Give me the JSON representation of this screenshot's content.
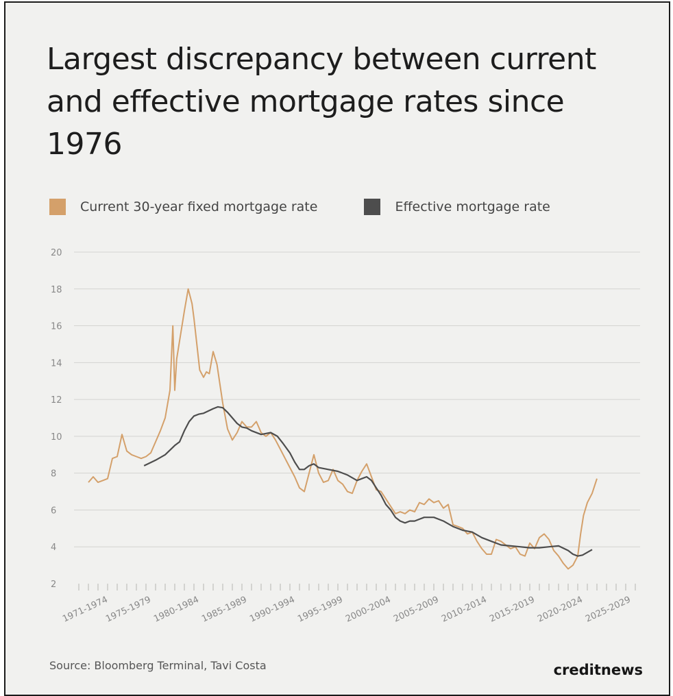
{
  "header": {
    "title": "Largest discrepancy between current and effective mortgage rates since 1976"
  },
  "footer": {
    "source": "Source: Bloomberg Terminal, Tavi Costa",
    "brand": "creditnews"
  },
  "chart_data": {
    "type": "line",
    "title": "Largest discrepancy between current and effective mortgage rates since 1976",
    "xlabel": "",
    "ylabel": "",
    "xlim": [
      1969.5,
      2028.5
    ],
    "ylim": [
      2,
      20
    ],
    "grid": true,
    "legend_position": "top-left",
    "yticks": [
      2,
      4,
      6,
      8,
      10,
      12,
      14,
      16,
      18,
      20
    ],
    "xtick_labels": [
      "1971-1974",
      "1975-1979",
      "1980-1984",
      "1985-1989",
      "1990-1994",
      "1995-1999",
      "2000-2004",
      "2005-2009",
      "2010-2014",
      "2015-2019",
      "2020-2024",
      "2025-2029"
    ],
    "series": [
      {
        "name": "Current 30-year fixed mortgage rate",
        "color": "#d4a06a",
        "x": [
          1971.0,
          1971.5,
          1972.0,
          1972.5,
          1973.0,
          1973.5,
          1974.0,
          1974.5,
          1975.0,
          1975.5,
          1976.0,
          1976.5,
          1977.0,
          1977.5,
          1978.0,
          1978.5,
          1979.0,
          1979.5,
          1979.8,
          1980.0,
          1980.2,
          1980.6,
          1981.0,
          1981.4,
          1981.8,
          1982.0,
          1982.3,
          1982.6,
          1983.0,
          1983.3,
          1983.6,
          1984.0,
          1984.4,
          1984.8,
          1985.0,
          1985.5,
          1986.0,
          1986.5,
          1987.0,
          1987.5,
          1988.0,
          1988.5,
          1989.0,
          1989.5,
          1990.0,
          1990.5,
          1991.0,
          1991.5,
          1992.0,
          1992.5,
          1993.0,
          1993.5,
          1994.0,
          1994.5,
          1995.0,
          1995.5,
          1996.0,
          1996.5,
          1997.0,
          1997.5,
          1998.0,
          1998.5,
          1999.0,
          1999.5,
          2000.0,
          2000.5,
          2001.0,
          2001.5,
          2002.0,
          2002.5,
          2003.0,
          2003.5,
          2004.0,
          2004.5,
          2005.0,
          2005.5,
          2006.0,
          2006.5,
          2007.0,
          2007.5,
          2008.0,
          2008.5,
          2009.0,
          2009.5,
          2010.0,
          2010.5,
          2011.0,
          2011.5,
          2012.0,
          2012.5,
          2013.0,
          2013.5,
          2014.0,
          2014.5,
          2015.0,
          2015.5,
          2016.0,
          2016.5,
          2017.0,
          2017.5,
          2018.0,
          2018.5,
          2019.0,
          2019.5,
          2020.0,
          2020.5,
          2021.0,
          2021.5,
          2022.0,
          2022.3,
          2022.6,
          2023.0,
          2023.5,
          2024.0
        ],
        "values": [
          7.5,
          7.8,
          7.5,
          7.6,
          7.7,
          8.8,
          8.9,
          10.1,
          9.2,
          9.0,
          8.9,
          8.8,
          8.9,
          9.1,
          9.7,
          10.3,
          11.0,
          12.5,
          16.0,
          12.5,
          14.2,
          15.5,
          16.8,
          18.0,
          17.2,
          16.4,
          15.0,
          13.6,
          13.2,
          13.5,
          13.4,
          14.6,
          13.9,
          12.5,
          11.8,
          10.4,
          9.8,
          10.2,
          10.8,
          10.5,
          10.5,
          10.8,
          10.2,
          10.0,
          10.2,
          9.8,
          9.3,
          8.8,
          8.3,
          7.8,
          7.2,
          7.0,
          8.0,
          9.0,
          8.0,
          7.5,
          7.6,
          8.2,
          7.6,
          7.4,
          7.0,
          6.9,
          7.6,
          8.1,
          8.5,
          7.8,
          7.1,
          7.0,
          6.6,
          6.2,
          5.8,
          5.9,
          5.8,
          6.0,
          5.9,
          6.4,
          6.3,
          6.6,
          6.4,
          6.5,
          6.1,
          6.3,
          5.2,
          5.1,
          5.0,
          4.7,
          4.8,
          4.3,
          3.9,
          3.6,
          3.6,
          4.4,
          4.3,
          4.1,
          3.9,
          4.0,
          3.6,
          3.5,
          4.2,
          3.9,
          4.5,
          4.7,
          4.4,
          3.8,
          3.5,
          3.1,
          2.8,
          3.0,
          3.5,
          4.7,
          5.7,
          6.4,
          6.9,
          7.7
        ]
      },
      {
        "name": "Effective mortgage rate",
        "color": "#4d4d4d",
        "x": [
          1976.8,
          1978.0,
          1979.0,
          1980.0,
          1980.5,
          1981.0,
          1981.5,
          1982.0,
          1982.5,
          1983.0,
          1984.0,
          1984.5,
          1985.0,
          1985.5,
          1986.0,
          1986.5,
          1987.0,
          1987.5,
          1988.0,
          1989.0,
          1990.0,
          1990.7,
          1991.3,
          1992.0,
          1992.5,
          1993.0,
          1993.5,
          1994.0,
          1994.5,
          1995.0,
          1996.0,
          1997.0,
          1998.0,
          1999.0,
          1999.5,
          2000.0,
          2000.5,
          2001.0,
          2001.5,
          2002.0,
          2002.5,
          2003.0,
          2003.5,
          2004.0,
          2004.5,
          2005.0,
          2005.5,
          2006.0,
          2007.0,
          2008.0,
          2009.0,
          2010.0,
          2011.0,
          2012.0,
          2013.0,
          2014.0,
          2015.0,
          2016.0,
          2017.0,
          2018.0,
          2019.0,
          2020.0,
          2021.0,
          2021.5,
          2022.0,
          2022.5,
          2023.0,
          2023.5
        ],
        "values": [
          8.4,
          8.7,
          9.0,
          9.5,
          9.7,
          10.3,
          10.8,
          11.1,
          11.2,
          11.25,
          11.5,
          11.6,
          11.55,
          11.3,
          11.0,
          10.7,
          10.5,
          10.45,
          10.3,
          10.1,
          10.2,
          10.0,
          9.6,
          9.1,
          8.6,
          8.2,
          8.2,
          8.4,
          8.5,
          8.3,
          8.2,
          8.1,
          7.9,
          7.6,
          7.7,
          7.8,
          7.6,
          7.2,
          6.8,
          6.3,
          6.0,
          5.6,
          5.4,
          5.3,
          5.4,
          5.4,
          5.5,
          5.6,
          5.6,
          5.4,
          5.1,
          4.9,
          4.8,
          4.5,
          4.3,
          4.1,
          4.05,
          4.0,
          3.95,
          3.95,
          4.0,
          4.05,
          3.8,
          3.6,
          3.5,
          3.55,
          3.7,
          3.85
        ]
      }
    ]
  }
}
